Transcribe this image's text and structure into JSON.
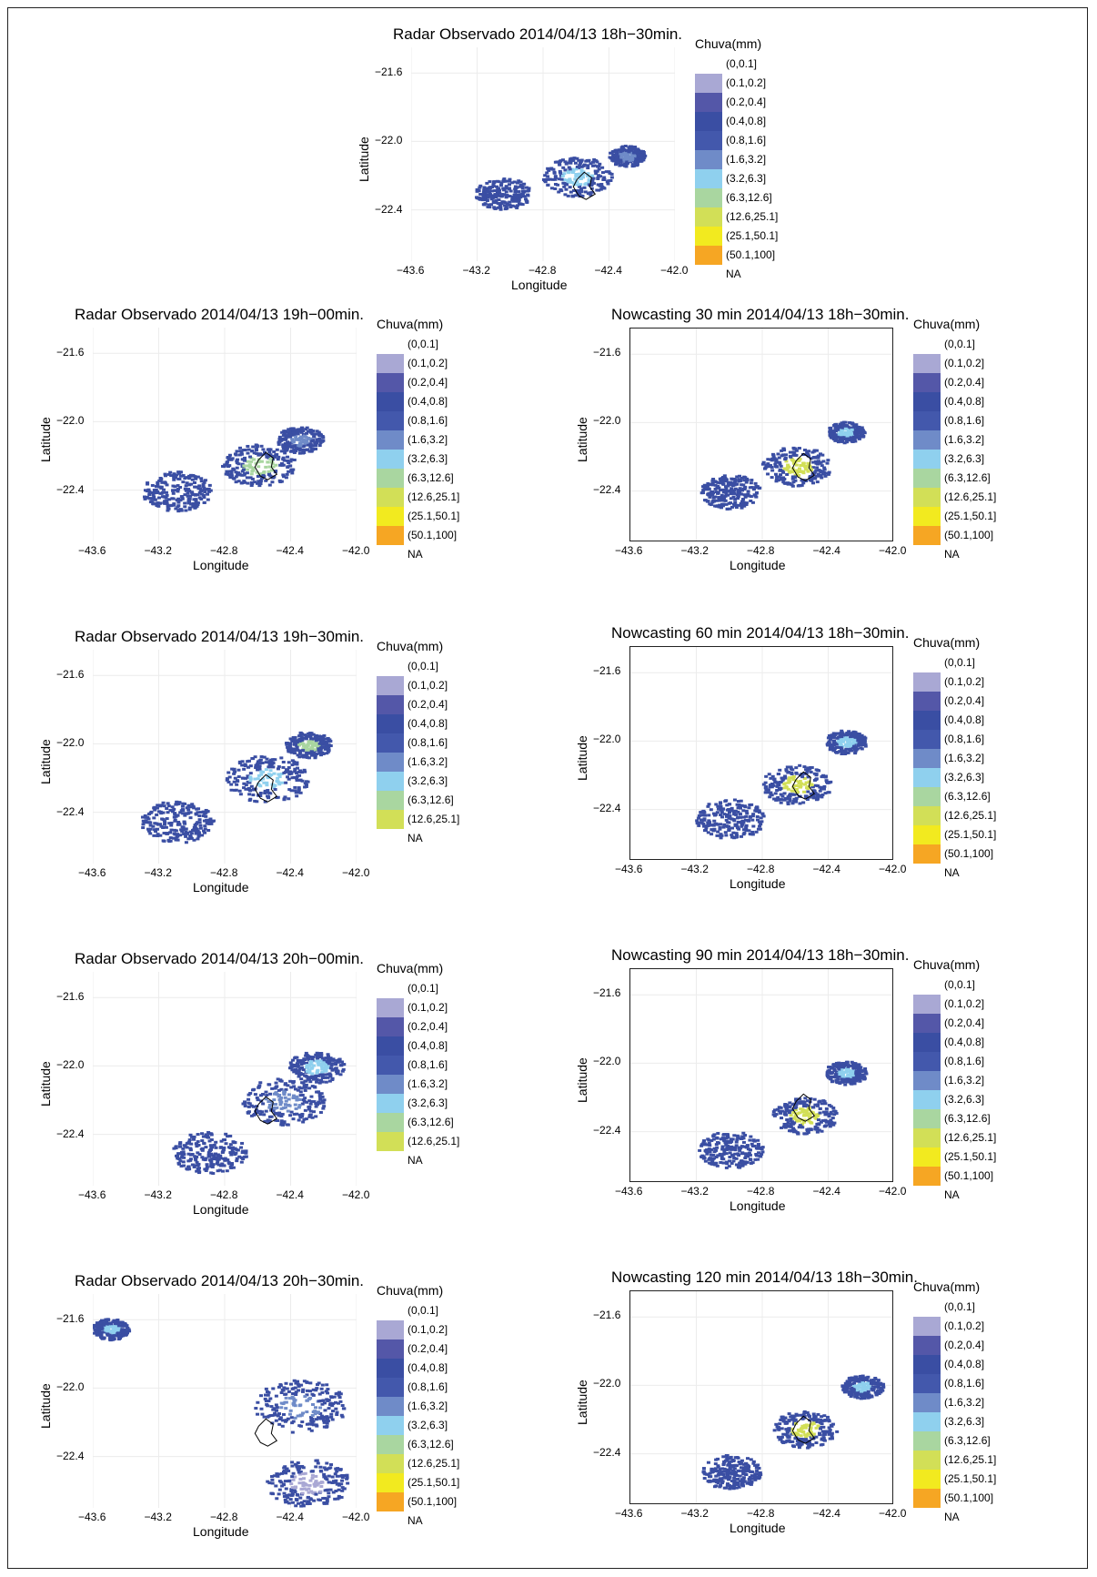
{
  "figure": {
    "legend_title": "Chuva(mm)",
    "xlabel": "Longitude",
    "ylabel": "Latitude",
    "x_ticks": [
      "−43.6",
      "−43.2",
      "−42.8",
      "−42.4",
      "−42.0"
    ],
    "y_ticks": [
      "−21.6",
      "−22.0",
      "−22.4"
    ],
    "na_label": "NA"
  },
  "palette": {
    "(0,0.1]": "#ffffff",
    "(0.1,0.2]": "#a9a8d4",
    "(0.2,0.4]": "#5457a8",
    "(0.4,0.8]": "#3a4ea3",
    "(0.8,1.6]": "#4358ac",
    "(1.6,3.2]": "#6f8bc8",
    "(3.2,6.3]": "#8fd0ee",
    "(6.3,12.6]": "#a9d6a0",
    "(12.6,25.1]": "#d2df57",
    "(25.1,50.1]": "#f2ea1f",
    "(50.1,100]": "#f6a623"
  },
  "chart_data": [
    {
      "type": "heatmap",
      "title": "Radar Observado 2014/04/13 18h−30min.",
      "xlabel": "Longitude",
      "ylabel": "Latitude",
      "xlim": [
        -43.6,
        -42.0
      ],
      "ylim": [
        -22.7,
        -21.45
      ],
      "legend_title": "Chuva(mm)",
      "legend_entries": [
        "(0,0.1]",
        "(0.1,0.2]",
        "(0.2,0.4]",
        "(0.4,0.8]",
        "(0.8,1.6]",
        "(1.6,3.2]",
        "(3.2,6.3]",
        "(6.3,12.6]",
        "(12.6,25.1]",
        "(25.1,50.1]",
        "(50.1,100]",
        "NA"
      ],
      "rain_cells": [
        {
          "lon": -43.05,
          "lat": -22.3,
          "r": 0.12,
          "class": "(0.4,0.8]"
        },
        {
          "lon": -42.6,
          "lat": -22.2,
          "r": 0.15,
          "class": "(3.2,6.3]"
        },
        {
          "lon": -42.3,
          "lat": -22.08,
          "r": 0.08,
          "class": "(1.6,3.2]"
        }
      ]
    },
    {
      "type": "heatmap",
      "title": "Radar Observado 2014/04/13 19h−00min.",
      "xlabel": "Longitude",
      "ylabel": "Latitude",
      "xlim": [
        -43.6,
        -42.0
      ],
      "ylim": [
        -22.7,
        -21.45
      ],
      "legend_title": "Chuva(mm)",
      "legend_entries": [
        "(0,0.1]",
        "(0.1,0.2]",
        "(0.2,0.4]",
        "(0.4,0.8]",
        "(0.8,1.6]",
        "(1.6,3.2]",
        "(3.2,6.3]",
        "(6.3,12.6]",
        "(12.6,25.1]",
        "(25.1,50.1]",
        "(50.1,100]",
        "NA"
      ],
      "rain_cells": [
        {
          "lon": -43.1,
          "lat": -22.4,
          "r": 0.15,
          "class": "(0.4,0.8]"
        },
        {
          "lon": -42.6,
          "lat": -22.25,
          "r": 0.16,
          "class": "(6.3,12.6]"
        },
        {
          "lon": -42.35,
          "lat": -22.1,
          "r": 0.1,
          "class": "(1.6,3.2]"
        }
      ]
    },
    {
      "type": "heatmap",
      "title": "Nowcasting 30 min 2014/04/13 18h−30min.",
      "xlabel": "Longitude",
      "ylabel": "Latitude",
      "xlim": [
        -43.6,
        -42.0
      ],
      "ylim": [
        -22.7,
        -21.45
      ],
      "legend_title": "Chuva(mm)",
      "legend_entries": [
        "(0,0.1]",
        "(0.1,0.2]",
        "(0.2,0.4]",
        "(0.4,0.8]",
        "(0.8,1.6]",
        "(1.6,3.2]",
        "(3.2,6.3]",
        "(6.3,12.6]",
        "(12.6,25.1]",
        "(25.1,50.1]",
        "(50.1,100]",
        "NA"
      ],
      "rain_cells": [
        {
          "lon": -43.0,
          "lat": -22.4,
          "r": 0.13,
          "class": "(0.4,0.8]"
        },
        {
          "lon": -42.6,
          "lat": -22.25,
          "r": 0.15,
          "class": "(12.6,25.1]"
        },
        {
          "lon": -42.3,
          "lat": -22.05,
          "r": 0.08,
          "class": "(3.2,6.3]"
        }
      ]
    },
    {
      "type": "heatmap",
      "title": "Radar Observado 2014/04/13 19h−30min.",
      "xlabel": "Longitude",
      "ylabel": "Latitude",
      "xlim": [
        -43.6,
        -42.0
      ],
      "ylim": [
        -22.7,
        -21.45
      ],
      "legend_title": "Chuva(mm)",
      "legend_entries": [
        "(0,0.1]",
        "(0.1,0.2]",
        "(0.2,0.4]",
        "(0.4,0.8]",
        "(0.8,1.6]",
        "(1.6,3.2]",
        "(3.2,6.3]",
        "(6.3,12.6]",
        "(12.6,25.1]",
        "NA"
      ],
      "rain_cells": [
        {
          "lon": -43.1,
          "lat": -22.45,
          "r": 0.16,
          "class": "(0.4,0.8]"
        },
        {
          "lon": -42.55,
          "lat": -22.2,
          "r": 0.18,
          "class": "(3.2,6.3]"
        },
        {
          "lon": -42.3,
          "lat": -22.0,
          "r": 0.1,
          "class": "(6.3,12.6]"
        }
      ]
    },
    {
      "type": "heatmap",
      "title": "Nowcasting 60 min 2014/04/13 18h−30min.",
      "xlabel": "Longitude",
      "ylabel": "Latitude",
      "xlim": [
        -43.6,
        -42.0
      ],
      "ylim": [
        -22.7,
        -21.45
      ],
      "legend_title": "Chuva(mm)",
      "legend_entries": [
        "(0,0.1]",
        "(0.1,0.2]",
        "(0.2,0.4]",
        "(0.4,0.8]",
        "(0.8,1.6]",
        "(1.6,3.2]",
        "(3.2,6.3]",
        "(6.3,12.6]",
        "(12.6,25.1]",
        "(25.1,50.1]",
        "(50.1,100]",
        "NA"
      ],
      "rain_cells": [
        {
          "lon": -43.0,
          "lat": -22.45,
          "r": 0.15,
          "class": "(0.4,0.8]"
        },
        {
          "lon": -42.6,
          "lat": -22.25,
          "r": 0.15,
          "class": "(12.6,25.1]"
        },
        {
          "lon": -42.3,
          "lat": -22.0,
          "r": 0.09,
          "class": "(3.2,6.3]"
        }
      ]
    },
    {
      "type": "heatmap",
      "title": "Radar Observado 2014/04/13 20h−00min.",
      "xlabel": "Longitude",
      "ylabel": "Latitude",
      "xlim": [
        -43.6,
        -42.0
      ],
      "ylim": [
        -22.7,
        -21.45
      ],
      "legend_title": "Chuva(mm)",
      "legend_entries": [
        "(0,0.1]",
        "(0.1,0.2]",
        "(0.2,0.4]",
        "(0.4,0.8]",
        "(0.8,1.6]",
        "(1.6,3.2]",
        "(3.2,6.3]",
        "(6.3,12.6]",
        "(12.6,25.1]",
        "NA"
      ],
      "rain_cells": [
        {
          "lon": -42.9,
          "lat": -22.5,
          "r": 0.16,
          "class": "(0.4,0.8]"
        },
        {
          "lon": -42.45,
          "lat": -22.2,
          "r": 0.18,
          "class": "(1.6,3.2]"
        },
        {
          "lon": -42.25,
          "lat": -22.0,
          "r": 0.12,
          "class": "(3.2,6.3]"
        }
      ]
    },
    {
      "type": "heatmap",
      "title": "Nowcasting 90 min 2014/04/13 18h−30min.",
      "xlabel": "Longitude",
      "ylabel": "Latitude",
      "xlim": [
        -43.6,
        -42.0
      ],
      "ylim": [
        -22.7,
        -21.45
      ],
      "legend_title": "Chuva(mm)",
      "legend_entries": [
        "(0,0.1]",
        "(0.1,0.2]",
        "(0.2,0.4]",
        "(0.4,0.8]",
        "(0.8,1.6]",
        "(1.6,3.2]",
        "(3.2,6.3]",
        "(6.3,12.6]",
        "(12.6,25.1]",
        "(25.1,50.1]",
        "(50.1,100]",
        "NA"
      ],
      "rain_cells": [
        {
          "lon": -43.0,
          "lat": -22.5,
          "r": 0.14,
          "class": "(0.4,0.8]"
        },
        {
          "lon": -42.55,
          "lat": -22.3,
          "r": 0.14,
          "class": "(12.6,25.1]"
        },
        {
          "lon": -42.3,
          "lat": -22.05,
          "r": 0.09,
          "class": "(3.2,6.3]"
        }
      ]
    },
    {
      "type": "heatmap",
      "title": "Radar Observado 2014/04/13 20h−30min.",
      "xlabel": "Longitude",
      "ylabel": "Latitude",
      "xlim": [
        -43.6,
        -42.0
      ],
      "ylim": [
        -22.7,
        -21.45
      ],
      "legend_title": "Chuva(mm)",
      "legend_entries": [
        "(0,0.1]",
        "(0.1,0.2]",
        "(0.2,0.4]",
        "(0.4,0.8]",
        "(0.8,1.6]",
        "(1.6,3.2]",
        "(3.2,6.3]",
        "(6.3,12.6]",
        "(12.6,25.1]",
        "(25.1,50.1]",
        "(50.1,100]",
        "NA"
      ],
      "rain_cells": [
        {
          "lon": -43.5,
          "lat": -21.65,
          "r": 0.08,
          "class": "(3.2,6.3]"
        },
        {
          "lon": -42.35,
          "lat": -22.1,
          "r": 0.2,
          "class": "(1.6,3.2]"
        },
        {
          "lon": -42.3,
          "lat": -22.55,
          "r": 0.18,
          "class": "(0.1,0.2]"
        }
      ]
    },
    {
      "type": "heatmap",
      "title": "Nowcasting 120 min 2014/04/13 18h−30min.",
      "xlabel": "Longitude",
      "ylabel": "Latitude",
      "xlim": [
        -43.6,
        -42.0
      ],
      "ylim": [
        -22.7,
        -21.45
      ],
      "legend_title": "Chuva(mm)",
      "legend_entries": [
        "(0,0.1]",
        "(0.1,0.2]",
        "(0.2,0.4]",
        "(0.4,0.8]",
        "(0.8,1.6]",
        "(1.6,3.2]",
        "(3.2,6.3]",
        "(6.3,12.6]",
        "(12.6,25.1]",
        "(25.1,50.1]",
        "(50.1,100]",
        "NA"
      ],
      "rain_cells": [
        {
          "lon": -43.0,
          "lat": -22.5,
          "r": 0.13,
          "class": "(0.4,0.8]"
        },
        {
          "lon": -42.55,
          "lat": -22.25,
          "r": 0.14,
          "class": "(12.6,25.1]"
        },
        {
          "lon": -42.2,
          "lat": -22.0,
          "r": 0.09,
          "class": "(3.2,6.3]"
        }
      ]
    }
  ]
}
